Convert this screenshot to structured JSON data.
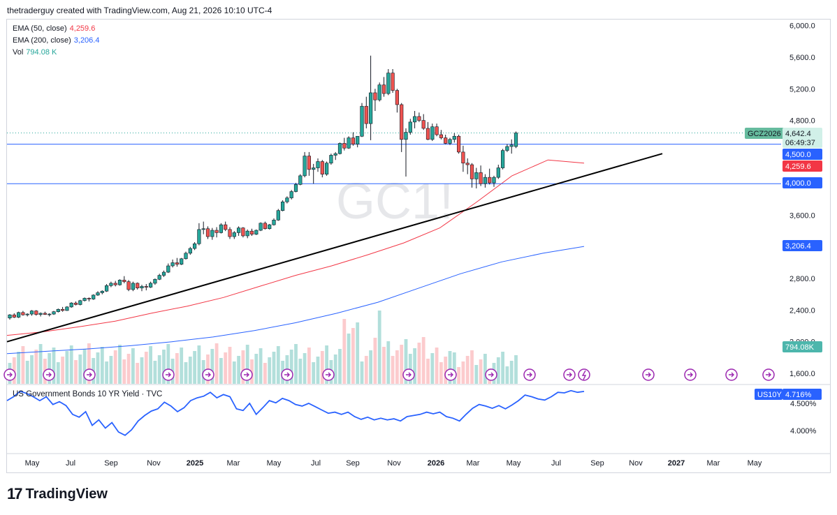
{
  "header": {
    "text": "thetraderguy created with TradingView.com, Aug 21, 2026 10:10 UTC-4"
  },
  "watermark": "GC1!",
  "legend": [
    {
      "label": "EMA (50, close)",
      "value": "4,259.6",
      "color": "#f23645"
    },
    {
      "label": "EMA (200, close)",
      "value": "3,206.4",
      "color": "#2962ff"
    },
    {
      "label": "Vol",
      "value": "794.08 K",
      "color": "#26a69a"
    }
  ],
  "price_axis": {
    "ticks": [
      "6,000.0",
      "5,600.0",
      "5,200.0",
      "4,800.0",
      "4,400.0",
      "4,000.0",
      "3,600.0",
      "3,200.0",
      "2,800.0",
      "2,400.0",
      "2,000.0",
      "1,600.0"
    ]
  },
  "badges": {
    "symbol": "GCZ2026",
    "price": "4,642.4",
    "countdown": "06:49:37",
    "line_4500": "4,500.0",
    "ema50": "4,259.6",
    "line_4000": "4,000.0",
    "ema200": "3,206.4",
    "vol": "794.08K"
  },
  "lower_pane": {
    "title": "US Government Bonds 10 YR Yield · TVC",
    "symbol": "US10Y",
    "value": "4.716%",
    "ticks": [
      "4.500%",
      "4.000%"
    ]
  },
  "time_axis": [
    "May",
    "Jul",
    "Sep",
    "Nov",
    "2025",
    "Mar",
    "May",
    "Jul",
    "Sep",
    "Nov",
    "2026",
    "Mar",
    "May",
    "Jul",
    "Sep",
    "Nov",
    "2027",
    "Mar",
    "May"
  ],
  "brand": "TradingView",
  "colors": {
    "up": "#26a69a",
    "down": "#ef5350",
    "ema50": "#f23645",
    "ema200": "#2962ff",
    "hline": "#2962ff",
    "trend": "#000000",
    "yield": "#2962ff",
    "vol_up": "#b2dfdb",
    "vol_down": "#fccbcd"
  },
  "chart_data": {
    "type": "line",
    "title": "",
    "price_range": [
      1600,
      6000
    ],
    "yield_range": [
      3.8,
      4.72
    ],
    "series": [
      {
        "name": "EMA (50, close)",
        "values": [
          2080,
          2125,
          2190,
          2260,
          2360,
          2450,
          2560,
          2700,
          2840,
          2960,
          3100,
          3250,
          3440,
          3760,
          4100,
          4300,
          4259.6
        ]
      },
      {
        "name": "EMA (200, close)",
        "values": [
          1850,
          1880,
          1910,
          1950,
          2000,
          2060,
          2140,
          2240,
          2360,
          2500,
          2680,
          2860,
          3010,
          3120,
          3206.4
        ]
      },
      {
        "name": "Vol",
        "value": "794.08 K"
      },
      {
        "name": "US Government Bonds 10 YR Yield",
        "values": [
          4.55,
          4.62,
          4.72,
          4.68,
          4.62,
          4.55,
          4.62,
          4.48,
          4.53,
          4.46,
          4.3,
          4.25,
          4.35,
          4.1,
          4.2,
          4.05,
          4.15,
          3.98,
          3.92,
          4.02,
          4.18,
          4.28,
          4.36,
          4.4,
          4.52,
          4.45,
          4.35,
          4.42,
          4.55,
          4.6,
          4.63,
          4.7,
          4.6,
          4.66,
          4.62,
          4.4,
          4.37,
          4.5,
          4.3,
          4.42,
          4.55,
          4.51,
          4.59,
          4.55,
          4.48,
          4.45,
          4.5,
          4.44,
          4.38,
          4.32,
          4.34,
          4.3,
          4.34,
          4.26,
          4.21,
          4.25,
          4.2,
          4.23,
          4.2,
          4.22,
          4.18,
          4.26,
          4.28,
          4.3,
          4.34,
          4.31,
          4.34,
          4.26,
          4.23,
          4.18,
          4.3,
          4.41,
          4.48,
          4.45,
          4.41,
          4.46,
          4.4,
          4.47,
          4.55,
          4.65,
          4.62,
          4.58,
          4.56,
          4.62,
          4.7,
          4.69,
          4.73,
          4.7,
          4.716
        ]
      }
    ],
    "candles": [
      [
        2300,
        2350,
        2280,
        2340
      ],
      [
        2340,
        2360,
        2300,
        2310
      ],
      [
        2310,
        2380,
        2300,
        2370
      ],
      [
        2370,
        2390,
        2330,
        2340
      ],
      [
        2340,
        2360,
        2320,
        2350
      ],
      [
        2350,
        2400,
        2330,
        2390
      ],
      [
        2390,
        2400,
        2330,
        2345
      ],
      [
        2345,
        2370,
        2320,
        2360
      ],
      [
        2360,
        2380,
        2340,
        2345
      ],
      [
        2345,
        2360,
        2320,
        2350
      ],
      [
        2350,
        2390,
        2340,
        2380
      ],
      [
        2380,
        2420,
        2370,
        2410
      ],
      [
        2410,
        2440,
        2380,
        2395
      ],
      [
        2395,
        2450,
        2390,
        2440
      ],
      [
        2440,
        2500,
        2430,
        2490
      ],
      [
        2490,
        2510,
        2460,
        2470
      ],
      [
        2470,
        2530,
        2460,
        2520
      ],
      [
        2520,
        2560,
        2510,
        2550
      ],
      [
        2550,
        2560,
        2510,
        2540
      ],
      [
        2540,
        2600,
        2530,
        2590
      ],
      [
        2590,
        2640,
        2580,
        2620
      ],
      [
        2620,
        2650,
        2600,
        2640
      ],
      [
        2640,
        2730,
        2630,
        2710
      ],
      [
        2710,
        2760,
        2690,
        2740
      ],
      [
        2740,
        2770,
        2700,
        2720
      ],
      [
        2720,
        2790,
        2710,
        2780
      ],
      [
        2780,
        2830,
        2740,
        2760
      ],
      [
        2760,
        2780,
        2640,
        2660
      ],
      [
        2660,
        2760,
        2640,
        2740
      ],
      [
        2740,
        2750,
        2660,
        2680
      ],
      [
        2680,
        2720,
        2640,
        2700
      ],
      [
        2700,
        2730,
        2650,
        2690
      ],
      [
        2690,
        2760,
        2680,
        2740
      ],
      [
        2740,
        2800,
        2720,
        2790
      ],
      [
        2790,
        2860,
        2780,
        2840
      ],
      [
        2840,
        2900,
        2820,
        2880
      ],
      [
        2880,
        2990,
        2870,
        2960
      ],
      [
        2960,
        3040,
        2940,
        3000
      ],
      [
        3000,
        3060,
        2950,
        2980
      ],
      [
        2980,
        3060,
        2970,
        3050
      ],
      [
        3050,
        3140,
        3040,
        3120
      ],
      [
        3120,
        3200,
        3100,
        3180
      ],
      [
        3180,
        3260,
        3160,
        3240
      ],
      [
        3240,
        3500,
        3220,
        3420
      ],
      [
        3420,
        3520,
        3360,
        3430
      ],
      [
        3430,
        3460,
        3300,
        3330
      ],
      [
        3330,
        3440,
        3290,
        3410
      ],
      [
        3410,
        3450,
        3320,
        3380
      ],
      [
        3380,
        3500,
        3370,
        3480
      ],
      [
        3480,
        3520,
        3400,
        3420
      ],
      [
        3420,
        3450,
        3300,
        3330
      ],
      [
        3330,
        3400,
        3300,
        3380
      ],
      [
        3380,
        3460,
        3340,
        3440
      ],
      [
        3440,
        3450,
        3320,
        3340
      ],
      [
        3340,
        3420,
        3310,
        3400
      ],
      [
        3400,
        3430,
        3340,
        3360
      ],
      [
        3360,
        3420,
        3350,
        3410
      ],
      [
        3410,
        3510,
        3400,
        3500
      ],
      [
        3500,
        3520,
        3420,
        3430
      ],
      [
        3430,
        3490,
        3420,
        3480
      ],
      [
        3480,
        3560,
        3470,
        3540
      ],
      [
        3540,
        3680,
        3530,
        3660
      ],
      [
        3660,
        3790,
        3650,
        3770
      ],
      [
        3770,
        3840,
        3750,
        3820
      ],
      [
        3820,
        3920,
        3800,
        3900
      ],
      [
        3900,
        4010,
        3890,
        3990
      ],
      [
        3990,
        4120,
        3980,
        4100
      ],
      [
        4100,
        4400,
        4080,
        4350
      ],
      [
        4350,
        4400,
        4100,
        4180
      ],
      [
        4180,
        4250,
        4000,
        4200
      ],
      [
        4200,
        4320,
        4150,
        4280
      ],
      [
        4280,
        4300,
        4080,
        4120
      ],
      [
        4120,
        4280,
        4100,
        4260
      ],
      [
        4260,
        4380,
        4240,
        4360
      ],
      [
        4360,
        4400,
        4300,
        4380
      ],
      [
        4380,
        4520,
        4370,
        4510
      ],
      [
        4510,
        4580,
        4420,
        4450
      ],
      [
        4450,
        4600,
        4440,
        4580
      ],
      [
        4580,
        4650,
        4480,
        4500
      ],
      [
        4500,
        4600,
        4460,
        4600
      ],
      [
        4600,
        5020,
        4590,
        4980
      ],
      [
        4980,
        5100,
        4700,
        4760
      ],
      [
        4760,
        5620,
        4550,
        5150
      ],
      [
        5150,
        5200,
        4920,
        5060
      ],
      [
        5060,
        5280,
        5040,
        5250
      ],
      [
        5250,
        5350,
        5100,
        5140
      ],
      [
        5140,
        5450,
        5120,
        5400
      ],
      [
        5400,
        5450,
        5150,
        5180
      ],
      [
        5180,
        5200,
        4900,
        5000
      ],
      [
        5000,
        5020,
        4400,
        4560
      ],
      [
        4560,
        4700,
        4090,
        4650
      ],
      [
        4650,
        4820,
        4620,
        4780
      ],
      [
        4780,
        4920,
        4700,
        4850
      ],
      [
        4850,
        4900,
        4780,
        4800
      ],
      [
        4800,
        4880,
        4680,
        4700
      ],
      [
        4700,
        4780,
        4550,
        4560
      ],
      [
        4560,
        4760,
        4540,
        4720
      ],
      [
        4720,
        4760,
        4600,
        4620
      ],
      [
        4620,
        4680,
        4560,
        4580
      ],
      [
        4580,
        4620,
        4500,
        4510
      ],
      [
        4510,
        4580,
        4490,
        4560
      ],
      [
        4560,
        4640,
        4520,
        4600
      ],
      [
        4600,
        4620,
        4380,
        4400
      ],
      [
        4400,
        4480,
        4150,
        4260
      ],
      [
        4260,
        4320,
        4120,
        4240
      ],
      [
        4240,
        4260,
        3950,
        4060
      ],
      [
        4060,
        4200,
        3940,
        4140
      ],
      [
        4140,
        4230,
        3970,
        4000
      ],
      [
        4000,
        4120,
        3950,
        4080
      ],
      [
        4080,
        4190,
        3990,
        4010
      ],
      [
        4010,
        4100,
        3960,
        4080
      ],
      [
        4080,
        4240,
        4060,
        4200
      ],
      [
        4200,
        4440,
        4180,
        4420
      ],
      [
        4420,
        4500,
        4400,
        4470
      ],
      [
        4470,
        4560,
        4380,
        4490
      ],
      [
        4470,
        4660,
        4450,
        4642.4
      ]
    ]
  }
}
